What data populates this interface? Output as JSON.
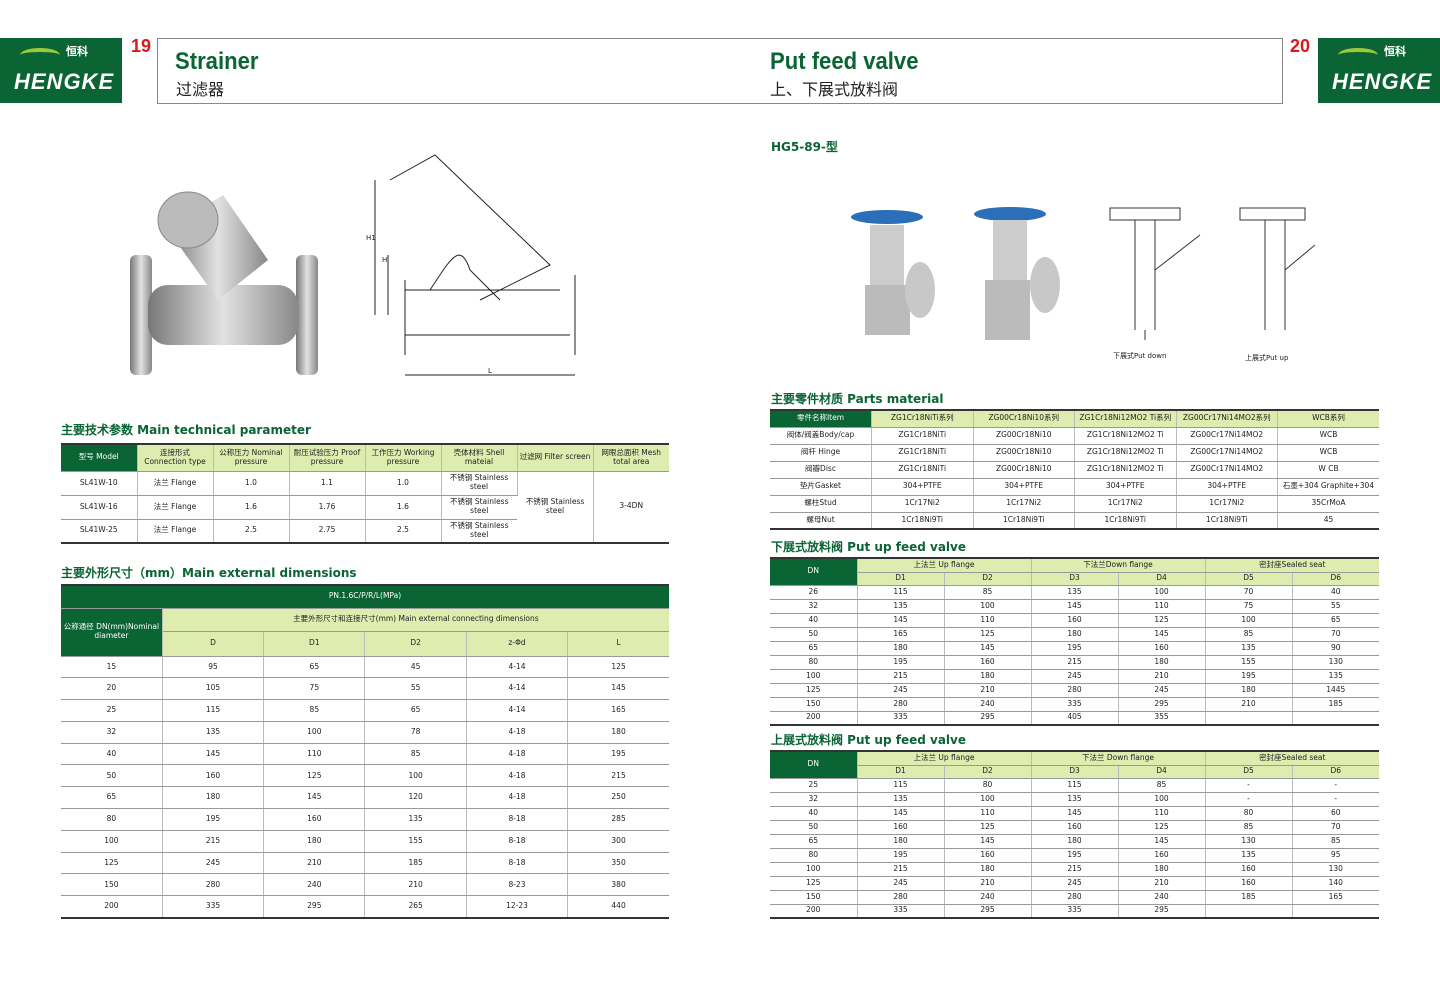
{
  "header": {
    "brand_cn": "恒科",
    "brand_en": "HENGKE",
    "left_page": "19",
    "right_page": "20",
    "left_title": "Strainer",
    "left_subtitle": "过滤器",
    "right_title": "Put feed valve",
    "right_subtitle": "上、下展式放料阀"
  },
  "colors": {
    "brand_green": "#0b6434",
    "header_light": "#dfecb0",
    "page_number": "#d8191d"
  },
  "left": {
    "drawing_labels": {
      "h1": "H1",
      "h": "H",
      "l": "L"
    },
    "tech_title": "主要技术参数 Main technical parameter",
    "tech_table": {
      "headers": [
        "型号 Model",
        "连接形式 Connection type",
        "公称压力 Nominal pressure",
        "耐压试验压力 Proof pressure",
        "工作压力 Working pressure",
        "壳体材料 Shell mateial",
        "过滤网 Filter screen",
        "网眼总面积 Mesh total area"
      ],
      "rows": [
        [
          "SL41W-10",
          "法兰 Flange",
          "1.0",
          "1.1",
          "1.0",
          "不锈钢 Stainless steel"
        ],
        [
          "SL41W-16",
          "法兰 Flange",
          "1.6",
          "1.76",
          "1.6",
          "不锈钢 Stainless steel"
        ],
        [
          "SL41W-25",
          "法兰 Flange",
          "2.5",
          "2.75",
          "2.5",
          "不锈钢 Stainless steel"
        ]
      ],
      "filter_screen": "不锈钢 Stainless steel",
      "mesh_area": "3-4DN"
    },
    "dim_title": "主要外形尺寸（mm）Main external dimensions",
    "dim_table": {
      "pn": "PN.1.6C/P/R/L(MPa)",
      "dn_header": "公称通径 DN(mm)Nominal diameter",
      "group_header": "主要外形尺寸和连接尺寸(mm) Main external connecting dimensions",
      "columns": [
        "D",
        "D1",
        "D2",
        "z-Φd",
        "L"
      ],
      "rows": [
        [
          "15",
          "95",
          "65",
          "45",
          "4-14",
          "125"
        ],
        [
          "20",
          "105",
          "75",
          "55",
          "4-14",
          "145"
        ],
        [
          "25",
          "115",
          "85",
          "65",
          "4-14",
          "165"
        ],
        [
          "32",
          "135",
          "100",
          "78",
          "4-18",
          "180"
        ],
        [
          "40",
          "145",
          "110",
          "85",
          "4-18",
          "195"
        ],
        [
          "50",
          "160",
          "125",
          "100",
          "4-18",
          "215"
        ],
        [
          "65",
          "180",
          "145",
          "120",
          "4-18",
          "250"
        ],
        [
          "80",
          "195",
          "160",
          "135",
          "8-18",
          "285"
        ],
        [
          "100",
          "215",
          "180",
          "155",
          "8-18",
          "300"
        ],
        [
          "125",
          "245",
          "210",
          "185",
          "8-18",
          "350"
        ],
        [
          "150",
          "280",
          "240",
          "210",
          "8-23",
          "380"
        ],
        [
          "200",
          "335",
          "295",
          "265",
          "12-23",
          "440"
        ]
      ]
    }
  },
  "right": {
    "model": "HG5-89-型",
    "drawing_labels": {
      "put_down": "下展式Put down",
      "put_up": "上展式Put up"
    },
    "parts_title": "主要零件材质 Parts material",
    "parts_table": {
      "headers": [
        "零件名称Item",
        "ZG1Cr18NiTi系列",
        "ZG00Cr18Ni10系列",
        "ZG1Cr18Ni12MO2 Ti系列",
        "ZG00Cr17Ni14MO2系列",
        "WCB系列"
      ],
      "rows": [
        [
          "阀体/阀盖Body/cap",
          "ZG1Cr18NiTi",
          "ZG00Cr18Ni10",
          "ZG1Cr18Ni12MO2 Ti",
          "ZG00Cr17Ni14MO2",
          "WCB"
        ],
        [
          "阀杆 Hinge",
          "ZG1Cr18NiTi",
          "ZG00Cr18Ni10",
          "ZG1Cr18Ni12MO2 Ti",
          "ZG00Cr17Ni14MO2",
          "WCB"
        ],
        [
          "阀瓣Disc",
          "ZG1Cr18NiTi",
          "ZG00Cr18Ni10",
          "ZG1Cr18Ni12MO2 Ti",
          "ZG00Cr17Ni14MO2",
          "W CB"
        ],
        [
          "垫片Gasket",
          "304+PTFE",
          "304+PTFE",
          "304+PTFE",
          "304+PTFE",
          "石墨+304 Graphite+304"
        ],
        [
          "螺柱Stud",
          "1Cr17Ni2",
          "1Cr17Ni2",
          "1Cr17Ni2",
          "1Cr17Ni2",
          "35CrMoA"
        ],
        [
          "螺母Nut",
          "1Cr18Ni9Ti",
          "1Cr18Ni9Ti",
          "1Cr18Ni9Ti",
          "1Cr18Ni9Ti",
          "45"
        ]
      ]
    },
    "down_title": "下展式放料阀 Put up feed valve",
    "down_table": {
      "dn": "DN",
      "groups": [
        "上法兰 Up flange",
        "下法兰Down flange",
        "密封座Sealed seat"
      ],
      "columns": [
        "D1",
        "D2",
        "D3",
        "D4",
        "D5",
        "D6"
      ],
      "rows": [
        [
          "26",
          "115",
          "85",
          "135",
          "100",
          "70",
          "40"
        ],
        [
          "32",
          "135",
          "100",
          "145",
          "110",
          "75",
          "55"
        ],
        [
          "40",
          "145",
          "110",
          "160",
          "125",
          "100",
          "65"
        ],
        [
          "50",
          "165",
          "125",
          "180",
          "145",
          "85",
          "70"
        ],
        [
          "65",
          "180",
          "145",
          "195",
          "160",
          "135",
          "90"
        ],
        [
          "80",
          "195",
          "160",
          "215",
          "180",
          "155",
          "130"
        ],
        [
          "100",
          "215",
          "180",
          "245",
          "210",
          "195",
          "135"
        ],
        [
          "125",
          "245",
          "210",
          "280",
          "245",
          "180",
          "1445"
        ],
        [
          "150",
          "280",
          "240",
          "335",
          "295",
          "210",
          "185"
        ],
        [
          "200",
          "335",
          "295",
          "405",
          "355",
          "",
          ""
        ]
      ]
    },
    "up_title": "上展式放料阀 Put up feed valve",
    "up_table": {
      "dn": "DN",
      "groups": [
        "上法兰 Up flange",
        "下法兰 Down flange",
        "密封座Sealed seat"
      ],
      "columns": [
        "D1",
        "D2",
        "D3",
        "D4",
        "D5",
        "D6"
      ],
      "rows": [
        [
          "25",
          "115",
          "80",
          "115",
          "85",
          "-",
          "-"
        ],
        [
          "32",
          "135",
          "100",
          "135",
          "100",
          "-",
          "-"
        ],
        [
          "40",
          "145",
          "110",
          "145",
          "110",
          "80",
          "60"
        ],
        [
          "50",
          "160",
          "125",
          "160",
          "125",
          "85",
          "70"
        ],
        [
          "65",
          "180",
          "145",
          "180",
          "145",
          "130",
          "85"
        ],
        [
          "80",
          "195",
          "160",
          "195",
          "160",
          "135",
          "95"
        ],
        [
          "100",
          "215",
          "180",
          "215",
          "180",
          "160",
          "130"
        ],
        [
          "125",
          "245",
          "210",
          "245",
          "210",
          "160",
          "140"
        ],
        [
          "150",
          "280",
          "240",
          "280",
          "240",
          "185",
          "165"
        ],
        [
          "200",
          "335",
          "295",
          "335",
          "295",
          "",
          ""
        ]
      ]
    }
  }
}
